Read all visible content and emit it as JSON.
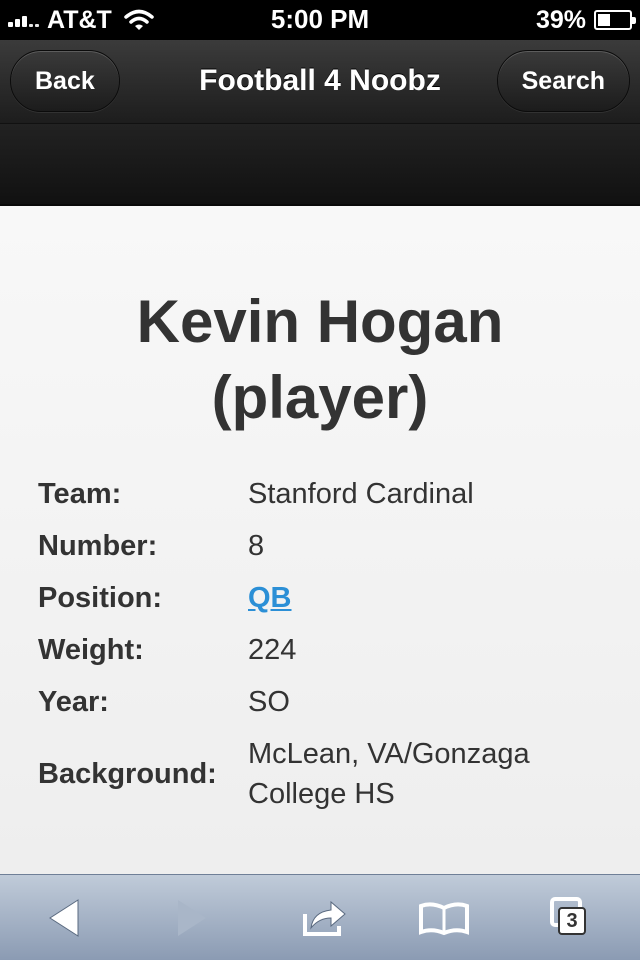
{
  "status_bar": {
    "carrier": "AT&T",
    "time": "5:00 PM",
    "battery_percent": "39%",
    "battery_level": 0.39
  },
  "header": {
    "back_label": "Back",
    "title": "Football 4 Noobz",
    "search_label": "Search"
  },
  "player": {
    "name_line1": "Kevin Hogan",
    "name_line2": "(player)",
    "fields": [
      {
        "label": "Team:",
        "value": "Stanford Cardinal"
      },
      {
        "label": "Number:",
        "value": "8"
      },
      {
        "label": "Position:",
        "value": "QB"
      },
      {
        "label": "Weight:",
        "value": "224"
      },
      {
        "label": "Year:",
        "value": "SO"
      },
      {
        "label": "Background:",
        "value": "McLean, VA/Gonzaga College HS"
      }
    ]
  },
  "toolbar": {
    "tabs_count": "3",
    "icons": [
      "back-arrow-icon",
      "forward-arrow-icon",
      "share-icon",
      "bookmarks-icon",
      "tabs-icon"
    ]
  },
  "colors": {
    "link": "#2b8fd6",
    "header": "#2a2a2a",
    "toolbar": "#a3b1c5"
  }
}
